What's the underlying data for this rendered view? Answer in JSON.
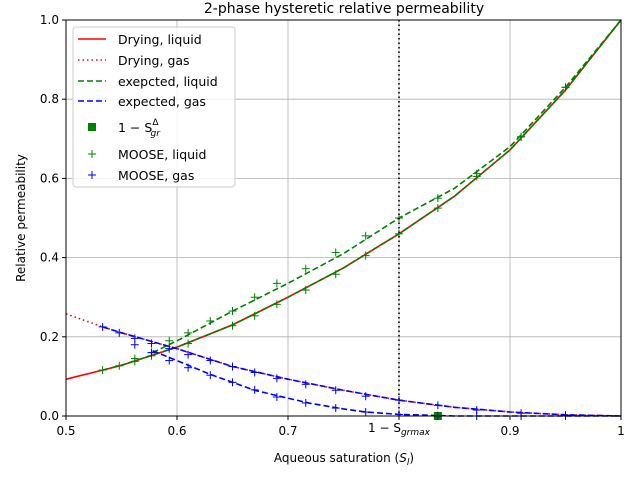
{
  "chart_data": {
    "type": "line",
    "title": "2-phase hysteretic relative permeability",
    "xlabel": {
      "main": "Aqueous saturation (",
      "italic": "S",
      "sub": "l",
      "end": ")"
    },
    "ylabel": "Relative permeability",
    "xlim": [
      0.5,
      1.0
    ],
    "ylim": [
      0.0,
      1.0
    ],
    "grid": true,
    "legend_position": "top-left",
    "x_ticks": [
      {
        "value": 0.5,
        "label": "0.5"
      },
      {
        "value": 0.6,
        "label": "0.6"
      },
      {
        "value": 0.7,
        "label": "0.7"
      },
      {
        "value": 0.9,
        "label": "0.9"
      },
      {
        "value": 1.0,
        "label": "1"
      }
    ],
    "special_x_tick": {
      "value": 0.8,
      "main": "1 − S",
      "sub": "grmax"
    },
    "y_ticks": [
      {
        "value": 0.0,
        "label": "0.0"
      },
      {
        "value": 0.2,
        "label": "0.2"
      },
      {
        "value": 0.4,
        "label": "0.4"
      },
      {
        "value": 0.6,
        "label": "0.6"
      },
      {
        "value": 0.8,
        "label": "0.8"
      },
      {
        "value": 1.0,
        "label": "1.0"
      }
    ],
    "vertical_line": {
      "x": 0.8,
      "color": "#000000",
      "style": "dotted"
    },
    "series": [
      {
        "name": "Drying, liquid",
        "kind": "line",
        "color": "#ff0000",
        "style": "solid",
        "segments": [
          {
            "x": [
              0.5,
              0.533,
              0.55,
              0.6,
              0.65,
              0.7,
              0.75,
              0.8,
              0.85,
              0.9,
              0.95,
              1.0
            ],
            "y": [
              0.093,
              0.116,
              0.128,
              0.174,
              0.23,
              0.3,
              0.374,
              0.46,
              0.555,
              0.672,
              0.823,
              1.0
            ]
          }
        ]
      },
      {
        "name": "Drying, gas",
        "kind": "line",
        "color": "#ff0000",
        "style": "dotted",
        "segments": [
          {
            "x": [
              0.5,
              0.533,
              0.55,
              0.6,
              0.65,
              0.7,
              0.75,
              0.8,
              0.85,
              0.9,
              0.95,
              1.0
            ],
            "y": [
              0.258,
              0.225,
              0.21,
              0.17,
              0.125,
              0.093,
              0.065,
              0.04,
              0.022,
              0.01,
              0.003,
              0.0
            ]
          }
        ]
      },
      {
        "name": "exepcted, liquid",
        "kind": "line",
        "color": "#008000",
        "style": "dashed",
        "segments": [
          {
            "x": [
              0.533,
              0.55,
              0.6,
              0.65,
              0.7,
              0.75,
              0.8,
              0.85,
              0.9,
              0.95,
              1.0
            ],
            "y": [
              0.116,
              0.128,
              0.174,
              0.23,
              0.3,
              0.374,
              0.46,
              0.555,
              0.672,
              0.823,
              1.0
            ]
          },
          {
            "x": [
              0.578,
              0.6,
              0.65,
              0.7,
              0.75,
              0.8,
              0.85,
              0.9,
              0.95,
              1.0
            ],
            "y": [
              0.16,
              0.19,
              0.265,
              0.335,
              0.41,
              0.5,
              0.575,
              0.68,
              0.83,
              1.0
            ]
          }
        ]
      },
      {
        "name": "expected, gas",
        "kind": "line",
        "color": "#0000ff",
        "style": "dashed",
        "segments": [
          {
            "x": [
              0.533,
              0.55,
              0.6,
              0.65,
              0.7,
              0.75,
              0.8,
              0.85,
              0.9,
              0.95,
              1.0
            ],
            "y": [
              0.225,
              0.21,
              0.17,
              0.125,
              0.093,
              0.065,
              0.04,
              0.022,
              0.01,
              0.003,
              0.0
            ]
          },
          {
            "x": [
              0.578,
              0.6,
              0.63,
              0.65,
              0.67,
              0.7,
              0.72,
              0.75,
              0.77,
              0.8,
              0.85,
              1.0
            ],
            "y": [
              0.165,
              0.14,
              0.105,
              0.085,
              0.065,
              0.045,
              0.032,
              0.018,
              0.01,
              0.004,
              0.0,
              0.0
            ]
          }
        ]
      },
      {
        "name": "1 − S",
        "name_sup": "Δ",
        "name_sub": "gr",
        "kind": "square",
        "color": "#008000",
        "x": [
          0.835
        ],
        "y": [
          0.0
        ]
      },
      {
        "name": "MOOSE, liquid",
        "kind": "plus",
        "color": "#008000",
        "x": [
          0.533,
          0.548,
          0.562,
          0.577,
          0.61,
          0.65,
          0.67,
          0.69,
          0.716,
          0.743,
          0.77,
          0.8,
          0.835,
          0.87,
          0.91,
          0.95,
          0.562,
          0.577,
          0.593,
          0.61,
          0.63,
          0.65,
          0.67,
          0.69,
          0.716,
          0.743,
          0.77,
          0.8,
          0.835,
          0.87,
          0.91,
          0.95
        ],
        "y": [
          0.116,
          0.127,
          0.138,
          0.152,
          0.183,
          0.228,
          0.253,
          0.282,
          0.318,
          0.358,
          0.405,
          0.46,
          0.525,
          0.605,
          0.705,
          0.83,
          0.145,
          0.16,
          0.19,
          0.21,
          0.24,
          0.265,
          0.3,
          0.335,
          0.372,
          0.413,
          0.455,
          0.5,
          0.55,
          0.612,
          0.705,
          0.83
        ]
      },
      {
        "name": "MOOSE, gas",
        "kind": "plus",
        "color": "#0000ff",
        "x": [
          0.533,
          0.548,
          0.562,
          0.577,
          0.593,
          0.61,
          0.63,
          0.65,
          0.67,
          0.69,
          0.716,
          0.743,
          0.77,
          0.8,
          0.835,
          0.87,
          0.91,
          0.95,
          0.562,
          0.577,
          0.593,
          0.61,
          0.63,
          0.65,
          0.67,
          0.69,
          0.716,
          0.743,
          0.77,
          0.8,
          0.835,
          0.87,
          0.91,
          0.95
        ],
        "y": [
          0.225,
          0.21,
          0.196,
          0.183,
          0.17,
          0.155,
          0.14,
          0.125,
          0.11,
          0.095,
          0.08,
          0.065,
          0.05,
          0.04,
          0.027,
          0.015,
          0.007,
          0.002,
          0.18,
          0.16,
          0.14,
          0.122,
          0.103,
          0.085,
          0.066,
          0.048,
          0.033,
          0.02,
          0.01,
          0.004,
          0.001,
          0.0,
          0.0,
          0.0
        ]
      }
    ]
  }
}
